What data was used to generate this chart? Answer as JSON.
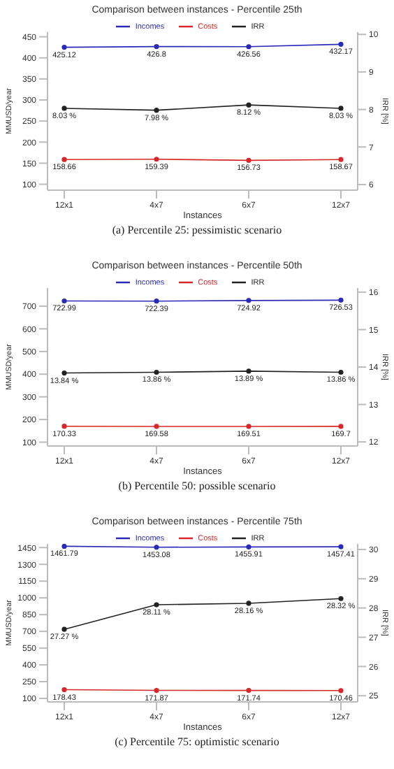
{
  "chart_data": [
    {
      "type": "line",
      "title": "Comparison between instances - Percentile 25th",
      "xlabel": "Instances",
      "ylabel": "MMUSD/year",
      "y2label": "IRR [%]",
      "categories": [
        "12x1",
        "4x7",
        "6x7",
        "12x7"
      ],
      "legend": "top",
      "marker": "circle",
      "ylim": [
        86,
        461
      ],
      "yticks": [
        100,
        150,
        200,
        250,
        300,
        350,
        400,
        450
      ],
      "y2lim": [
        5.85,
        10.06
      ],
      "y2ticks": [
        6,
        7,
        8,
        9,
        10
      ],
      "annotations": [
        "(a) Percentile 25: pessimistic scenario"
      ],
      "series": [
        {
          "name": "Incomes",
          "color": "#2a2ab8",
          "values": [
            425.12,
            426.8,
            426.56,
            432.17
          ],
          "value_labels": [
            "425.12",
            "426.8",
            "426.56",
            "432.17"
          ]
        },
        {
          "name": "Costs",
          "color": "#d62828",
          "values": [
            158.66,
            159.39,
            156.73,
            158.67
          ],
          "value_labels": [
            "158.66",
            "159.39",
            "156.73",
            "158.67"
          ]
        },
        {
          "name": "IRR",
          "color": "#222222",
          "axis": "y2",
          "values": [
            8.03,
            7.98,
            8.12,
            8.03
          ],
          "value_labels": [
            "8.03 %",
            "7.98 %",
            "8.12 %",
            "8.03 %"
          ]
        }
      ]
    },
    {
      "type": "line",
      "title": "Comparison between instances - Percentile 50th",
      "xlabel": "Instances",
      "ylabel": "MMUSD/year",
      "y2label": "IRR [%]",
      "categories": [
        "12x1",
        "4x7",
        "6x7",
        "12x7"
      ],
      "legend": "top",
      "marker": "circle",
      "ylim": [
        83,
        780
      ],
      "yticks": [
        100,
        200,
        300,
        400,
        500,
        600,
        700
      ],
      "y2lim": [
        11.89,
        16.11
      ],
      "y2ticks": [
        12,
        13,
        14,
        15,
        16
      ],
      "annotations": [
        "(b) Percentile 50: possible scenario"
      ],
      "series": [
        {
          "name": "Incomes",
          "color": "#2a2ab8",
          "values": [
            722.99,
            722.39,
            724.92,
            726.53
          ],
          "value_labels": [
            "722.99",
            "722.39",
            "724.92",
            "726.53"
          ]
        },
        {
          "name": "Costs",
          "color": "#d62828",
          "values": [
            170.33,
            169.58,
            169.51,
            169.7
          ],
          "value_labels": [
            "170.33",
            "169.58",
            "169.51",
            "169.7"
          ]
        },
        {
          "name": "IRR",
          "color": "#222222",
          "axis": "y2",
          "values": [
            13.84,
            13.86,
            13.89,
            13.86
          ],
          "value_labels": [
            "13.84 %",
            "13.86 %",
            "13.89 %",
            "13.86 %"
          ]
        }
      ]
    },
    {
      "type": "line",
      "title": "Comparison between instances - Percentile 75th",
      "xlabel": "Instances",
      "ylabel": "MMUSD/year",
      "y2label": "IRR [%]",
      "categories": [
        "12x1",
        "4x7",
        "6x7",
        "12x7"
      ],
      "legend": "top",
      "marker": "circle",
      "ylim": [
        69,
        1483
      ],
      "yticks": [
        100,
        250,
        400,
        550,
        700,
        850,
        1000,
        1150,
        1300,
        1450
      ],
      "y2lim": [
        24.79,
        30.19
      ],
      "y2ticks": [
        25,
        26,
        27,
        28,
        29,
        30
      ],
      "annotations": [
        "(c) Percentile 75: optimistic scenario"
      ],
      "series": [
        {
          "name": "Incomes",
          "color": "#2a2ab8",
          "values": [
            1461.79,
            1453.08,
            1455.91,
            1457.41
          ],
          "value_labels": [
            "1461.79",
            "1453.08",
            "1455.91",
            "1457.41"
          ]
        },
        {
          "name": "Costs",
          "color": "#d62828",
          "values": [
            178.43,
            171.87,
            171.74,
            170.46
          ],
          "value_labels": [
            "178.43",
            "171.87",
            "171.74",
            "170.46"
          ]
        },
        {
          "name": "IRR",
          "color": "#222222",
          "axis": "y2",
          "values": [
            27.27,
            28.11,
            28.16,
            28.32
          ],
          "value_labels": [
            "27.27 %",
            "28.11 %",
            "28.16 %",
            "28.32 %"
          ]
        }
      ]
    }
  ]
}
